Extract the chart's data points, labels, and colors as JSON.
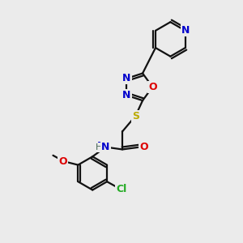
{
  "bg_color": "#ebebeb",
  "atom_colors": {
    "C": "#000000",
    "N": "#0000cc",
    "O": "#dd0000",
    "S": "#bbaa00",
    "Cl": "#22aa22",
    "H": "#446655"
  },
  "bond_color": "#111111",
  "bond_lw": 1.6
}
